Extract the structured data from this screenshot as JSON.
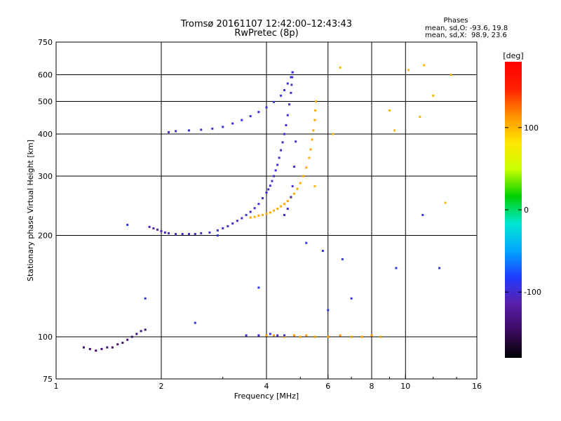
{
  "header": {
    "title_line1": "Tromsø 20161107 12:42:00–12:43:43",
    "title_line2": "RwPretec (8p)",
    "stats_title": "Phases",
    "stats_o": "mean, sd,O: -93.6, 19.8",
    "stats_x": "mean, sd,X:  98.9, 23.6"
  },
  "chart_data": {
    "type": "scatter",
    "title": "Tromsø 20161107 12:42:00–12:43:43",
    "subtitle": "RwPretec (8p)",
    "xlabel": "Frequency [MHz]",
    "ylabel": "Stationary phase Virtual Height [km]",
    "xscale": "log",
    "yscale": "log",
    "xlim": [
      1,
      16
    ],
    "ylim": [
      75,
      750
    ],
    "x_ticks": [
      1,
      2,
      4,
      6,
      8,
      10,
      16
    ],
    "y_ticks": [
      75,
      100,
      200,
      300,
      400,
      500,
      600,
      750
    ],
    "grid_x": [
      2,
      4,
      6,
      8,
      10
    ],
    "grid_y": [
      100,
      200,
      300,
      400,
      500,
      600
    ],
    "grid": true,
    "colorbar": {
      "label": "[deg]",
      "range": [
        -180,
        180
      ],
      "ticks": [
        -100,
        0,
        100
      ],
      "colors": [
        "#000000",
        "#3a0a5e",
        "#5a1fa8",
        "#1f3cff",
        "#00a8ff",
        "#00e8d0",
        "#00d000",
        "#c8ff00",
        "#ffe600",
        "#ff9000",
        "#ff2000",
        "#ff0000"
      ]
    },
    "series": [
      {
        "x": [
          2.05,
          2.1,
          2.2,
          2.3,
          2.4,
          2.5,
          2.6,
          2.75,
          2.9,
          3.0,
          3.1,
          3.2,
          3.3,
          3.4,
          3.5,
          3.6,
          3.7,
          3.8,
          3.9,
          4.0,
          4.05,
          4.1,
          4.15,
          4.2,
          4.25,
          4.3,
          4.35,
          4.4,
          4.45,
          4.5,
          4.55,
          4.6,
          4.65,
          4.7,
          4.72,
          4.74,
          4.75
        ],
        "y": [
          204,
          203,
          202,
          202,
          202,
          202,
          203,
          204,
          207,
          210,
          213,
          217,
          221,
          225,
          230,
          235,
          241,
          248,
          258,
          268,
          274,
          281,
          290,
          300,
          312,
          324,
          340,
          358,
          378,
          400,
          425,
          455,
          490,
          530,
          560,
          590,
          610
        ],
        "phase": -100
      },
      {
        "x": [
          1.85,
          1.9,
          1.95,
          2.0
        ],
        "y": [
          212,
          210,
          208,
          206
        ],
        "phase": -110
      },
      {
        "x": [
          3.6,
          3.7,
          3.8,
          3.9,
          4.0,
          4.1,
          4.2,
          4.3,
          4.4,
          4.5,
          4.6,
          4.7,
          4.8,
          4.9,
          5.0,
          5.1,
          5.2,
          5.3,
          5.35,
          5.4,
          5.45,
          5.5,
          5.52,
          5.54
        ],
        "y": [
          226,
          227,
          229,
          230,
          232,
          234,
          237,
          240,
          244,
          248,
          253,
          259,
          266,
          275,
          286,
          300,
          318,
          340,
          360,
          385,
          410,
          440,
          470,
          500
        ],
        "phase": 105
      },
      {
        "x": [
          4.5,
          4.6,
          4.7,
          4.75,
          4.8,
          4.85
        ],
        "y": [
          230,
          240,
          260,
          280,
          320,
          380
        ],
        "phase": -100
      },
      {
        "x": [
          2.1,
          2.2,
          2.4,
          2.6,
          2.8,
          3.0,
          3.2,
          3.4,
          3.6,
          3.8,
          4.0,
          4.2,
          4.4,
          4.5,
          4.6,
          4.7,
          4.75
        ],
        "y": [
          405,
          408,
          410,
          412,
          415,
          420,
          430,
          440,
          452,
          465,
          480,
          498,
          520,
          540,
          565,
          590,
          610
        ],
        "phase": -95
      },
      {
        "x": [
          1.2,
          1.25,
          1.3,
          1.35,
          1.4,
          1.45,
          1.5,
          1.55,
          1.6,
          1.65,
          1.7,
          1.75,
          1.8
        ],
        "y": [
          93,
          92,
          91,
          92,
          93,
          93,
          95,
          96,
          98,
          100,
          102,
          104,
          105
        ],
        "phase": -140
      },
      {
        "x": [
          4.0,
          4.2,
          4.5,
          4.8,
          5.0,
          5.2,
          5.5,
          6.0,
          6.5,
          7.0,
          7.5,
          8.0,
          8.5
        ],
        "y": [
          101,
          101,
          100,
          101,
          100,
          101,
          100,
          100,
          101,
          100,
          100,
          101,
          100
        ],
        "phase": 110
      },
      {
        "x": [
          3.5,
          3.8,
          4.1,
          4.3,
          4.5
        ],
        "y": [
          101,
          101,
          102,
          101,
          101
        ],
        "phase": -100
      },
      {
        "x": [
          5.5,
          6.2,
          6.5,
          9.0,
          9.3,
          10.2,
          11.0,
          11.3,
          12.0,
          13.0,
          13.5
        ],
        "y": [
          280,
          400,
          630,
          470,
          410,
          620,
          450,
          640,
          520,
          250,
          600
        ],
        "phase": 100
      },
      {
        "x": [
          1.6,
          1.8,
          2.5,
          2.9,
          3.8,
          5.2,
          5.8,
          6.0,
          6.6,
          7.0,
          9.4,
          11.2,
          12.5
        ],
        "y": [
          215,
          130,
          110,
          200,
          140,
          190,
          180,
          120,
          170,
          130,
          160,
          230,
          160
        ],
        "phase": -90
      }
    ]
  }
}
